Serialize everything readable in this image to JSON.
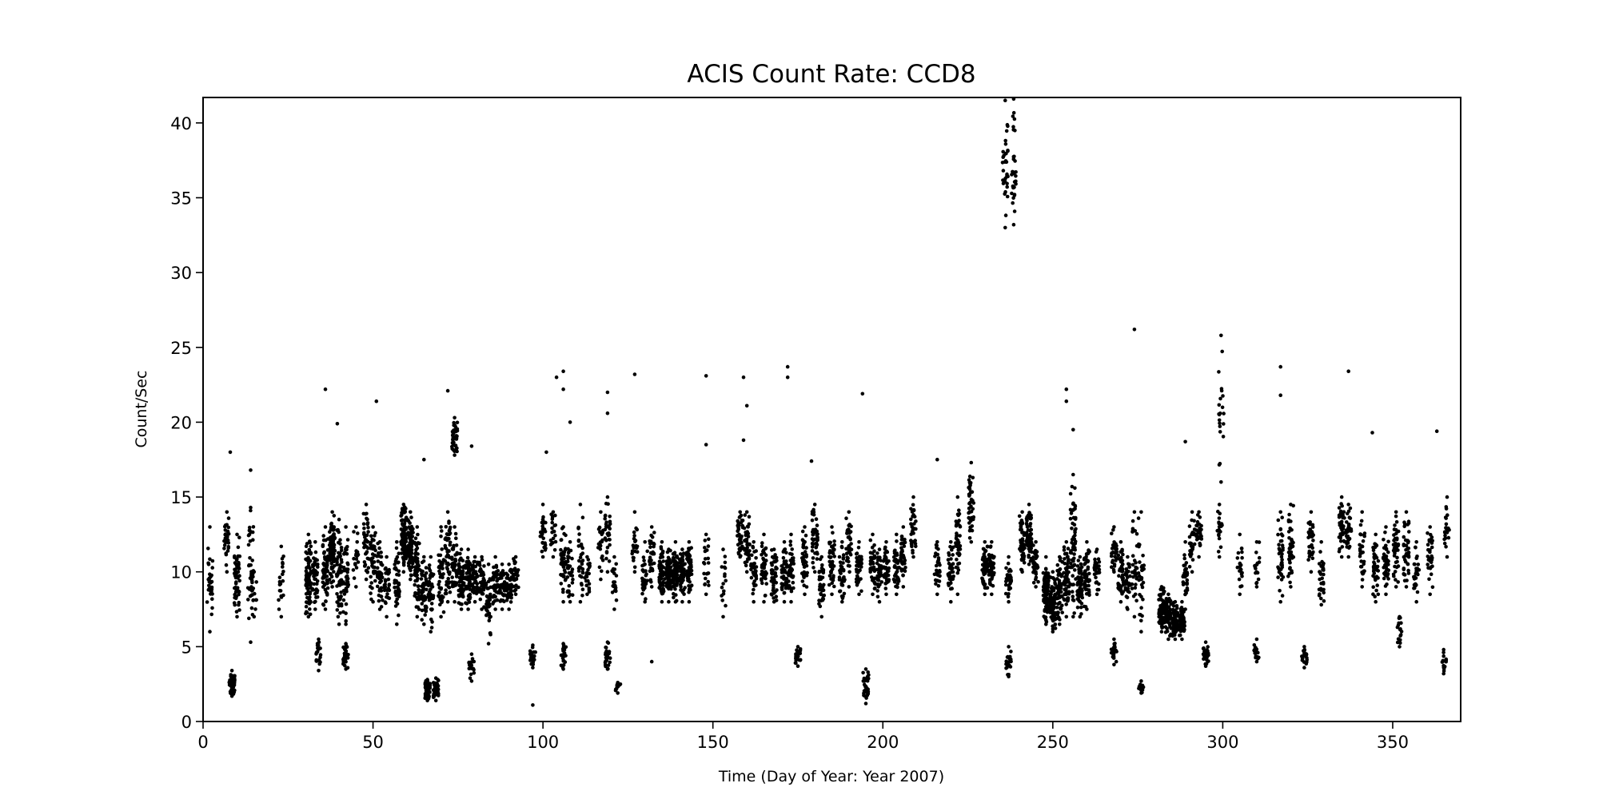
{
  "chart_data": {
    "type": "scatter",
    "title": "ACIS Count Rate: CCD8",
    "xlabel": "Time (Day of Year: Year 2007)",
    "ylabel": "Count/Sec",
    "xlim": [
      0,
      370
    ],
    "ylim": [
      0,
      41.7
    ],
    "xticks": [
      0,
      50,
      100,
      150,
      200,
      250,
      300,
      350
    ],
    "yticks": [
      0,
      5,
      10,
      15,
      20,
      25,
      30,
      35,
      40
    ],
    "grid": false,
    "legend": "none",
    "marker_color": "#000000",
    "clusters_note": "day, min, max, count",
    "clusters": [
      [
        2,
        6,
        13,
        30
      ],
      [
        7,
        10,
        14,
        30
      ],
      [
        8.5,
        1.7,
        3.4,
        60
      ],
      [
        10,
        7,
        12.5,
        50
      ],
      [
        14,
        5.3,
        14.3,
        40
      ],
      [
        15,
        7,
        10,
        10
      ],
      [
        23,
        7,
        11.7,
        20
      ],
      [
        31,
        7,
        12.5,
        80
      ],
      [
        33,
        7.5,
        12,
        40
      ],
      [
        34,
        3.4,
        5.5,
        20
      ],
      [
        36,
        7.5,
        13,
        60
      ],
      [
        38,
        9,
        14,
        80
      ],
      [
        40,
        6.5,
        13.5,
        60
      ],
      [
        42,
        3.5,
        5.2,
        25
      ],
      [
        42,
        6.5,
        13,
        40
      ],
      [
        45,
        9,
        13,
        20
      ],
      [
        48,
        9.5,
        14.5,
        40
      ],
      [
        50,
        8,
        13,
        40
      ],
      [
        52,
        7.5,
        12,
        40
      ],
      [
        54,
        7,
        11,
        30
      ],
      [
        57,
        6.5,
        12,
        40
      ],
      [
        59,
        10,
        14.5,
        80
      ],
      [
        61,
        9.5,
        14,
        80
      ],
      [
        63,
        7,
        13,
        60
      ],
      [
        65,
        6.5,
        11,
        50
      ],
      [
        66,
        1.4,
        2.8,
        50
      ],
      [
        67,
        6,
        11,
        40
      ],
      [
        68.5,
        1.4,
        2.9,
        50
      ],
      [
        70,
        7,
        13,
        40
      ],
      [
        72,
        8,
        14,
        50
      ],
      [
        74,
        17.8,
        20.3,
        40
      ],
      [
        74,
        8,
        13,
        40
      ],
      [
        76,
        7.5,
        11.5,
        60
      ],
      [
        78,
        7.5,
        11.5,
        60
      ],
      [
        79,
        2.7,
        4.5,
        20
      ],
      [
        80,
        8,
        11,
        40
      ],
      [
        82,
        7.5,
        11,
        40
      ],
      [
        84,
        5.2,
        10.5,
        40
      ],
      [
        86,
        7.5,
        11,
        40
      ],
      [
        88,
        7.5,
        10.5,
        40
      ],
      [
        90,
        7.5,
        10.5,
        40
      ],
      [
        92,
        8.5,
        11,
        30
      ],
      [
        97,
        3.6,
        5.1,
        20
      ],
      [
        100,
        11,
        14.5,
        30
      ],
      [
        103,
        11,
        14,
        20
      ],
      [
        106,
        3.5,
        5.2,
        20
      ],
      [
        106,
        8,
        13,
        40
      ],
      [
        108,
        8,
        12,
        30
      ],
      [
        111,
        8,
        14.5,
        30
      ],
      [
        113,
        8.5,
        11,
        20
      ],
      [
        117,
        9.5,
        14,
        20
      ],
      [
        119,
        3.5,
        5.3,
        25
      ],
      [
        119,
        10,
        15,
        30
      ],
      [
        121,
        7.5,
        11,
        20
      ],
      [
        122,
        1.9,
        2.6,
        10
      ],
      [
        127,
        10,
        14,
        20
      ],
      [
        130,
        8,
        12,
        30
      ],
      [
        132,
        9,
        13,
        30
      ],
      [
        135,
        8,
        12,
        60
      ],
      [
        137,
        8,
        11.5,
        60
      ],
      [
        139,
        8,
        12,
        60
      ],
      [
        141,
        8,
        11.5,
        60
      ],
      [
        143,
        8,
        12,
        60
      ],
      [
        148,
        8.5,
        12.5,
        20
      ],
      [
        153,
        7,
        11.5,
        15
      ],
      [
        158,
        11,
        14,
        40
      ],
      [
        160,
        10,
        14,
        40
      ],
      [
        162,
        8,
        12,
        40
      ],
      [
        165,
        8,
        12.5,
        40
      ],
      [
        168,
        8,
        11.5,
        40
      ],
      [
        171,
        8,
        12,
        40
      ],
      [
        173,
        8,
        12.5,
        40
      ],
      [
        175,
        3.7,
        5,
        20
      ],
      [
        177,
        8.5,
        13,
        40
      ],
      [
        180,
        10,
        14.5,
        40
      ],
      [
        182,
        7,
        11,
        40
      ],
      [
        185,
        8.5,
        13,
        40
      ],
      [
        188,
        8,
        12,
        40
      ],
      [
        190,
        9,
        14,
        40
      ],
      [
        193,
        8.5,
        12,
        40
      ],
      [
        195,
        1.2,
        3.5,
        30
      ],
      [
        197,
        8.5,
        12.5,
        40
      ],
      [
        199,
        8,
        11.5,
        40
      ],
      [
        201,
        8.5,
        12,
        40
      ],
      [
        204,
        8.5,
        12.5,
        40
      ],
      [
        206,
        9,
        13,
        40
      ],
      [
        209,
        11,
        15,
        30
      ],
      [
        216,
        8.5,
        12,
        30
      ],
      [
        220,
        8,
        12,
        40
      ],
      [
        222,
        8.5,
        15,
        40
      ],
      [
        226,
        12,
        17.3,
        40
      ],
      [
        230,
        8.5,
        12,
        50
      ],
      [
        232,
        8.5,
        12,
        50
      ],
      [
        236,
        33,
        41.5,
        30
      ],
      [
        238.5,
        33.2,
        41.6,
        30
      ],
      [
        237,
        3,
        5,
        20
      ],
      [
        237,
        8,
        11,
        30
      ],
      [
        241,
        10,
        14,
        50
      ],
      [
        243,
        10.5,
        14.5,
        60
      ],
      [
        245,
        9,
        12,
        30
      ],
      [
        248,
        6.5,
        11,
        80
      ],
      [
        250,
        6,
        10,
        80
      ],
      [
        252,
        6.5,
        11,
        60
      ],
      [
        254,
        7,
        12,
        60
      ],
      [
        256,
        7,
        16.5,
        60
      ],
      [
        258,
        7,
        11,
        60
      ],
      [
        260,
        7.5,
        12,
        50
      ],
      [
        263,
        8.5,
        11.5,
        30
      ],
      [
        268,
        3.8,
        5.5,
        20
      ],
      [
        268,
        10,
        13,
        30
      ],
      [
        270,
        8,
        12,
        40
      ],
      [
        272,
        7.5,
        11,
        30
      ],
      [
        274,
        7,
        14,
        30
      ],
      [
        276,
        1.9,
        2.7,
        10
      ],
      [
        276,
        6,
        14,
        30
      ],
      [
        282,
        6,
        9,
        70
      ],
      [
        284,
        5.5,
        8.5,
        70
      ],
      [
        286,
        5.5,
        8,
        70
      ],
      [
        288,
        5.5,
        8,
        60
      ],
      [
        289,
        7.5,
        12,
        30
      ],
      [
        291,
        10,
        14,
        30
      ],
      [
        293,
        11,
        14,
        30
      ],
      [
        295,
        3.7,
        5.3,
        30
      ],
      [
        299,
        11,
        14.5,
        20
      ],
      [
        299.5,
        16,
        25.8,
        20
      ],
      [
        305,
        8.5,
        12.5,
        20
      ],
      [
        310,
        4,
        5.5,
        15
      ],
      [
        310,
        9,
        12,
        15
      ],
      [
        317,
        8,
        14,
        40
      ],
      [
        320,
        9,
        14.5,
        40
      ],
      [
        324,
        3.6,
        5,
        20
      ],
      [
        326,
        10,
        14,
        30
      ],
      [
        329,
        7.8,
        12,
        30
      ],
      [
        335,
        11,
        15,
        40
      ],
      [
        337,
        11,
        14.5,
        30
      ],
      [
        341,
        9,
        14,
        30
      ],
      [
        345,
        8,
        12.5,
        40
      ],
      [
        348,
        8.5,
        13,
        40
      ],
      [
        351,
        9,
        14,
        40
      ],
      [
        352,
        5,
        7,
        15
      ],
      [
        354,
        9,
        14,
        40
      ],
      [
        357,
        8,
        12,
        30
      ],
      [
        361,
        8.5,
        13,
        30
      ],
      [
        365,
        3.2,
        4.8,
        15
      ],
      [
        366,
        11,
        15,
        20
      ]
    ],
    "outliers": [
      [
        8,
        18
      ],
      [
        36,
        22.2
      ],
      [
        39.5,
        19.9
      ],
      [
        51,
        21.4
      ],
      [
        14,
        16.8
      ],
      [
        72,
        22.1
      ],
      [
        104,
        23
      ],
      [
        106,
        23.4
      ],
      [
        101,
        18
      ],
      [
        108,
        20
      ],
      [
        106,
        22.2
      ],
      [
        119,
        22
      ],
      [
        119,
        20.6
      ],
      [
        127,
        23.2
      ],
      [
        148,
        23.1
      ],
      [
        148,
        18.5
      ],
      [
        159,
        23
      ],
      [
        160,
        21.1
      ],
      [
        159,
        18.8
      ],
      [
        172,
        23.7
      ],
      [
        172,
        23
      ],
      [
        194,
        21.9
      ],
      [
        274,
        26.2
      ],
      [
        254,
        22.2
      ],
      [
        254,
        21.4
      ],
      [
        256,
        19.5
      ],
      [
        317,
        23.7
      ],
      [
        317,
        21.8
      ],
      [
        337,
        23.4
      ],
      [
        363,
        19.4
      ],
      [
        344,
        19.3
      ],
      [
        289,
        18.7
      ],
      [
        97,
        1.1
      ],
      [
        132,
        4
      ],
      [
        65,
        17.5
      ],
      [
        79,
        18.4
      ],
      [
        216,
        17.5
      ],
      [
        179,
        17.4
      ]
    ]
  }
}
